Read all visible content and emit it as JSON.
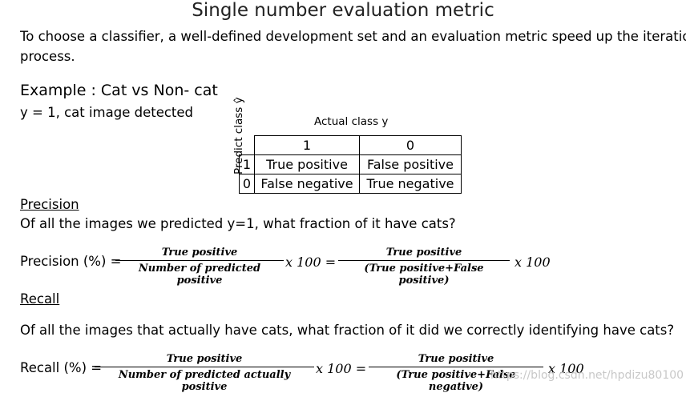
{
  "title": "Single number evaluation metric",
  "intro_line1": "To choose a classifier, a well-defined development set and an evaluation metric speed up the iteration",
  "intro_line2": "process.",
  "example_heading": "Example : Cat vs Non- cat",
  "example_sub": "y = 1, cat image detected",
  "matrix": {
    "actual_label": "Actual class y",
    "predict_label": "Predict class ŷ",
    "col_headers": [
      "1",
      "0"
    ],
    "rows": [
      {
        "index": "1",
        "cells": [
          "True positive",
          "False positive"
        ]
      },
      {
        "index": "0",
        "cells": [
          "False negative",
          "True negative"
        ]
      }
    ]
  },
  "precision": {
    "heading": "Precision",
    "question": "Of all the images we predicted y=1, what fraction of it have cats?",
    "lhs": "Precision (%) =",
    "frac1_num": "True positive",
    "frac1_den": "Number of predicted positive",
    "mid": "x 100 =",
    "frac2_num": "True positive",
    "frac2_den": "(True positive+False positive)",
    "tail": "x 100"
  },
  "recall": {
    "heading": "Recall",
    "question": "Of all the images that actually have cats, what fraction of it did we correctly identifying have cats?",
    "lhs": "Recall (%) =",
    "frac1_num": "True positive",
    "frac1_den": "Number of predicted actually positive",
    "mid": "x 100 =",
    "frac2_num": "True positive",
    "frac2_den": "(True positive+False negative)",
    "tail": "x 100"
  },
  "watermark": "https://blog.csdn.net/hpdizu80100"
}
